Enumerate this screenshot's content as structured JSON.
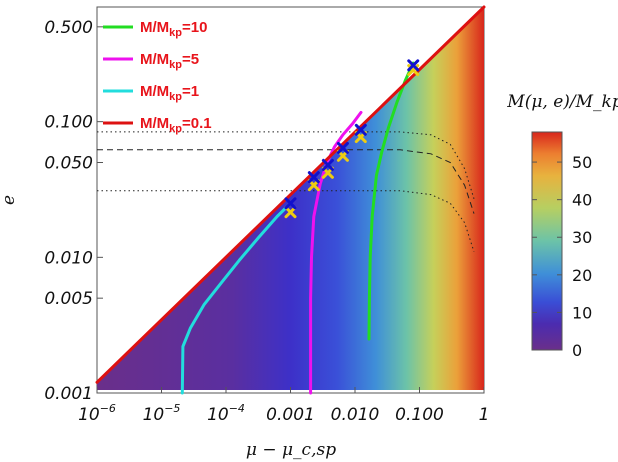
{
  "chart_data": {
    "type": "heatmap",
    "x_scale": "log",
    "y_scale": "log",
    "xlabel": "μ − μ_c,sp",
    "ylabel": "e",
    "xlim": [
      1e-06,
      1
    ],
    "ylim": [
      0.001,
      0.7
    ],
    "x_ticks": [
      {
        "value": 1e-06,
        "label": "10",
        "exp": "−6"
      },
      {
        "value": 1e-05,
        "label": "10",
        "exp": "−5"
      },
      {
        "value": 0.0001,
        "label": "10",
        "exp": "−4"
      },
      {
        "value": 0.001,
        "label": "0.001",
        "exp": ""
      },
      {
        "value": 0.01,
        "label": "0.010",
        "exp": ""
      },
      {
        "value": 0.1,
        "label": "0.100",
        "exp": ""
      },
      {
        "value": 1,
        "label": "1",
        "exp": ""
      }
    ],
    "y_ticks": [
      {
        "value": 0.5,
        "label": "0.500"
      },
      {
        "value": 0.1,
        "label": "0.100"
      },
      {
        "value": 0.05,
        "label": "0.050"
      },
      {
        "value": 0.01,
        "label": "0.010"
      },
      {
        "value": 0.005,
        "label": "0.005"
      },
      {
        "value": 0.001,
        "label": "0.001"
      }
    ],
    "colorbar": {
      "label": "M(μ, e)/M_kp",
      "range": [
        0,
        58
      ],
      "ticks": [
        0,
        10,
        20,
        30,
        40,
        50
      ]
    },
    "series": [
      {
        "name": "M/M_kp=10",
        "color": "#22dd22",
        "x": [
          0.0165,
          0.0167,
          0.0172,
          0.0185,
          0.0215,
          0.026,
          0.033,
          0.045,
          0.06,
          0.08
        ],
        "y": [
          0.0025,
          0.005,
          0.01,
          0.02,
          0.04,
          0.06,
          0.09,
          0.14,
          0.2,
          0.27
        ]
      },
      {
        "name": "M/M_kp=5",
        "color": "#ee11ee",
        "x": [
          0.00205,
          0.00205,
          0.00212,
          0.0023,
          0.0029,
          0.0037,
          0.0048,
          0.0065,
          0.0092,
          0.0124
        ],
        "y": [
          0.001,
          0.005,
          0.01,
          0.02,
          0.035,
          0.05,
          0.065,
          0.08,
          0.097,
          0.117
        ]
      },
      {
        "name": "M/M_kp=1",
        "color": "#22dddd",
        "x": [
          2.1e-05,
          2.15e-05,
          2.8e-05,
          4.6e-05,
          8.5e-05,
          0.00016,
          0.00032,
          0.00062,
          0.001
        ],
        "y": [
          0.001,
          0.0022,
          0.003,
          0.0045,
          0.0065,
          0.0095,
          0.014,
          0.02,
          0.025
        ]
      },
      {
        "name": "M/M_kp=0.1",
        "color": "#dd1111",
        "x": [
          1e-06,
          1
        ],
        "y": [
          0.0012,
          0.7
        ]
      }
    ],
    "markers_x": {
      "color": "#1111cc",
      "x": [
        0.001,
        0.0023,
        0.0038,
        0.0065,
        0.0123,
        0.08
      ],
      "y": [
        0.025,
        0.039,
        0.048,
        0.064,
        0.087,
        0.26
      ]
    },
    "markers_y": {
      "color": "#eecc11",
      "x": [
        0.001,
        0.0023,
        0.0038,
        0.0065,
        0.0123,
        0.08
      ],
      "y": [
        0.0215,
        0.034,
        0.042,
        0.056,
        0.077,
        0.24
      ]
    },
    "reference_lines": [
      {
        "style": "dotted",
        "x": [
          1e-06,
          0.05,
          0.15,
          0.3,
          0.5,
          0.7
        ],
        "y": [
          0.084,
          0.084,
          0.08,
          0.068,
          0.045,
          0.027
        ]
      },
      {
        "style": "dashed",
        "x": [
          1e-06,
          0.05,
          0.15,
          0.3,
          0.5,
          0.7
        ],
        "y": [
          0.062,
          0.062,
          0.058,
          0.05,
          0.034,
          0.021
        ]
      },
      {
        "style": "dotted",
        "x": [
          1e-06,
          0.05,
          0.15,
          0.3,
          0.5,
          0.7
        ],
        "y": [
          0.031,
          0.031,
          0.029,
          0.025,
          0.018,
          0.011
        ]
      }
    ]
  }
}
